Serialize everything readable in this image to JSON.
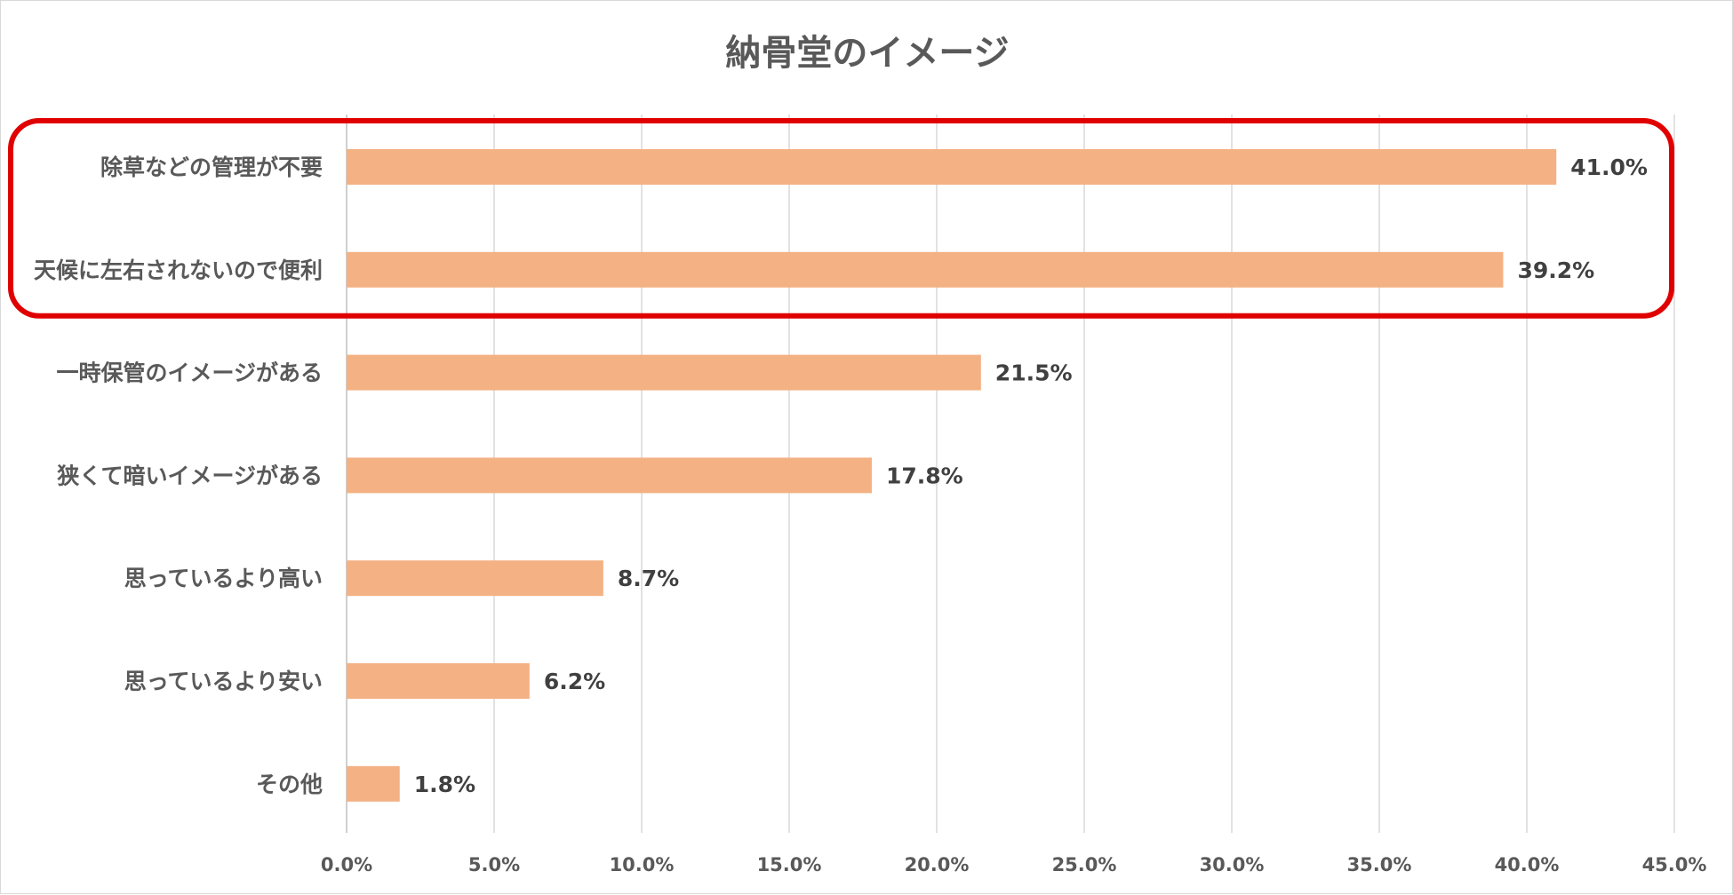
{
  "chart_data": {
    "type": "bar",
    "orientation": "horizontal",
    "title": "納骨堂のイメージ",
    "categories": [
      "除草などの管理が不要",
      "天候に左右されないので便利",
      "一時保管のイメージがある",
      "狭くて暗いイメージがある",
      "思っているより高い",
      "思っているより安い",
      "その他"
    ],
    "values": [
      41.0,
      39.2,
      21.5,
      17.8,
      8.7,
      6.2,
      1.8
    ],
    "value_labels": [
      "41.0%",
      "39.2%",
      "21.5%",
      "17.8%",
      "8.7%",
      "6.2%",
      "1.8%"
    ],
    "x_ticks": [
      "0.0%",
      "5.0%",
      "10.0%",
      "15.0%",
      "20.0%",
      "25.0%",
      "30.0%",
      "35.0%",
      "40.0%",
      "45.0%"
    ],
    "xlim": [
      0,
      45
    ],
    "xlabel": "",
    "ylabel": "",
    "grid": "vertical",
    "legend": "none",
    "highlighted_categories": [
      0,
      1
    ],
    "colors": {
      "bar": "#F4B183",
      "highlight": "#E00000",
      "grid": "#D9D9D9"
    }
  }
}
